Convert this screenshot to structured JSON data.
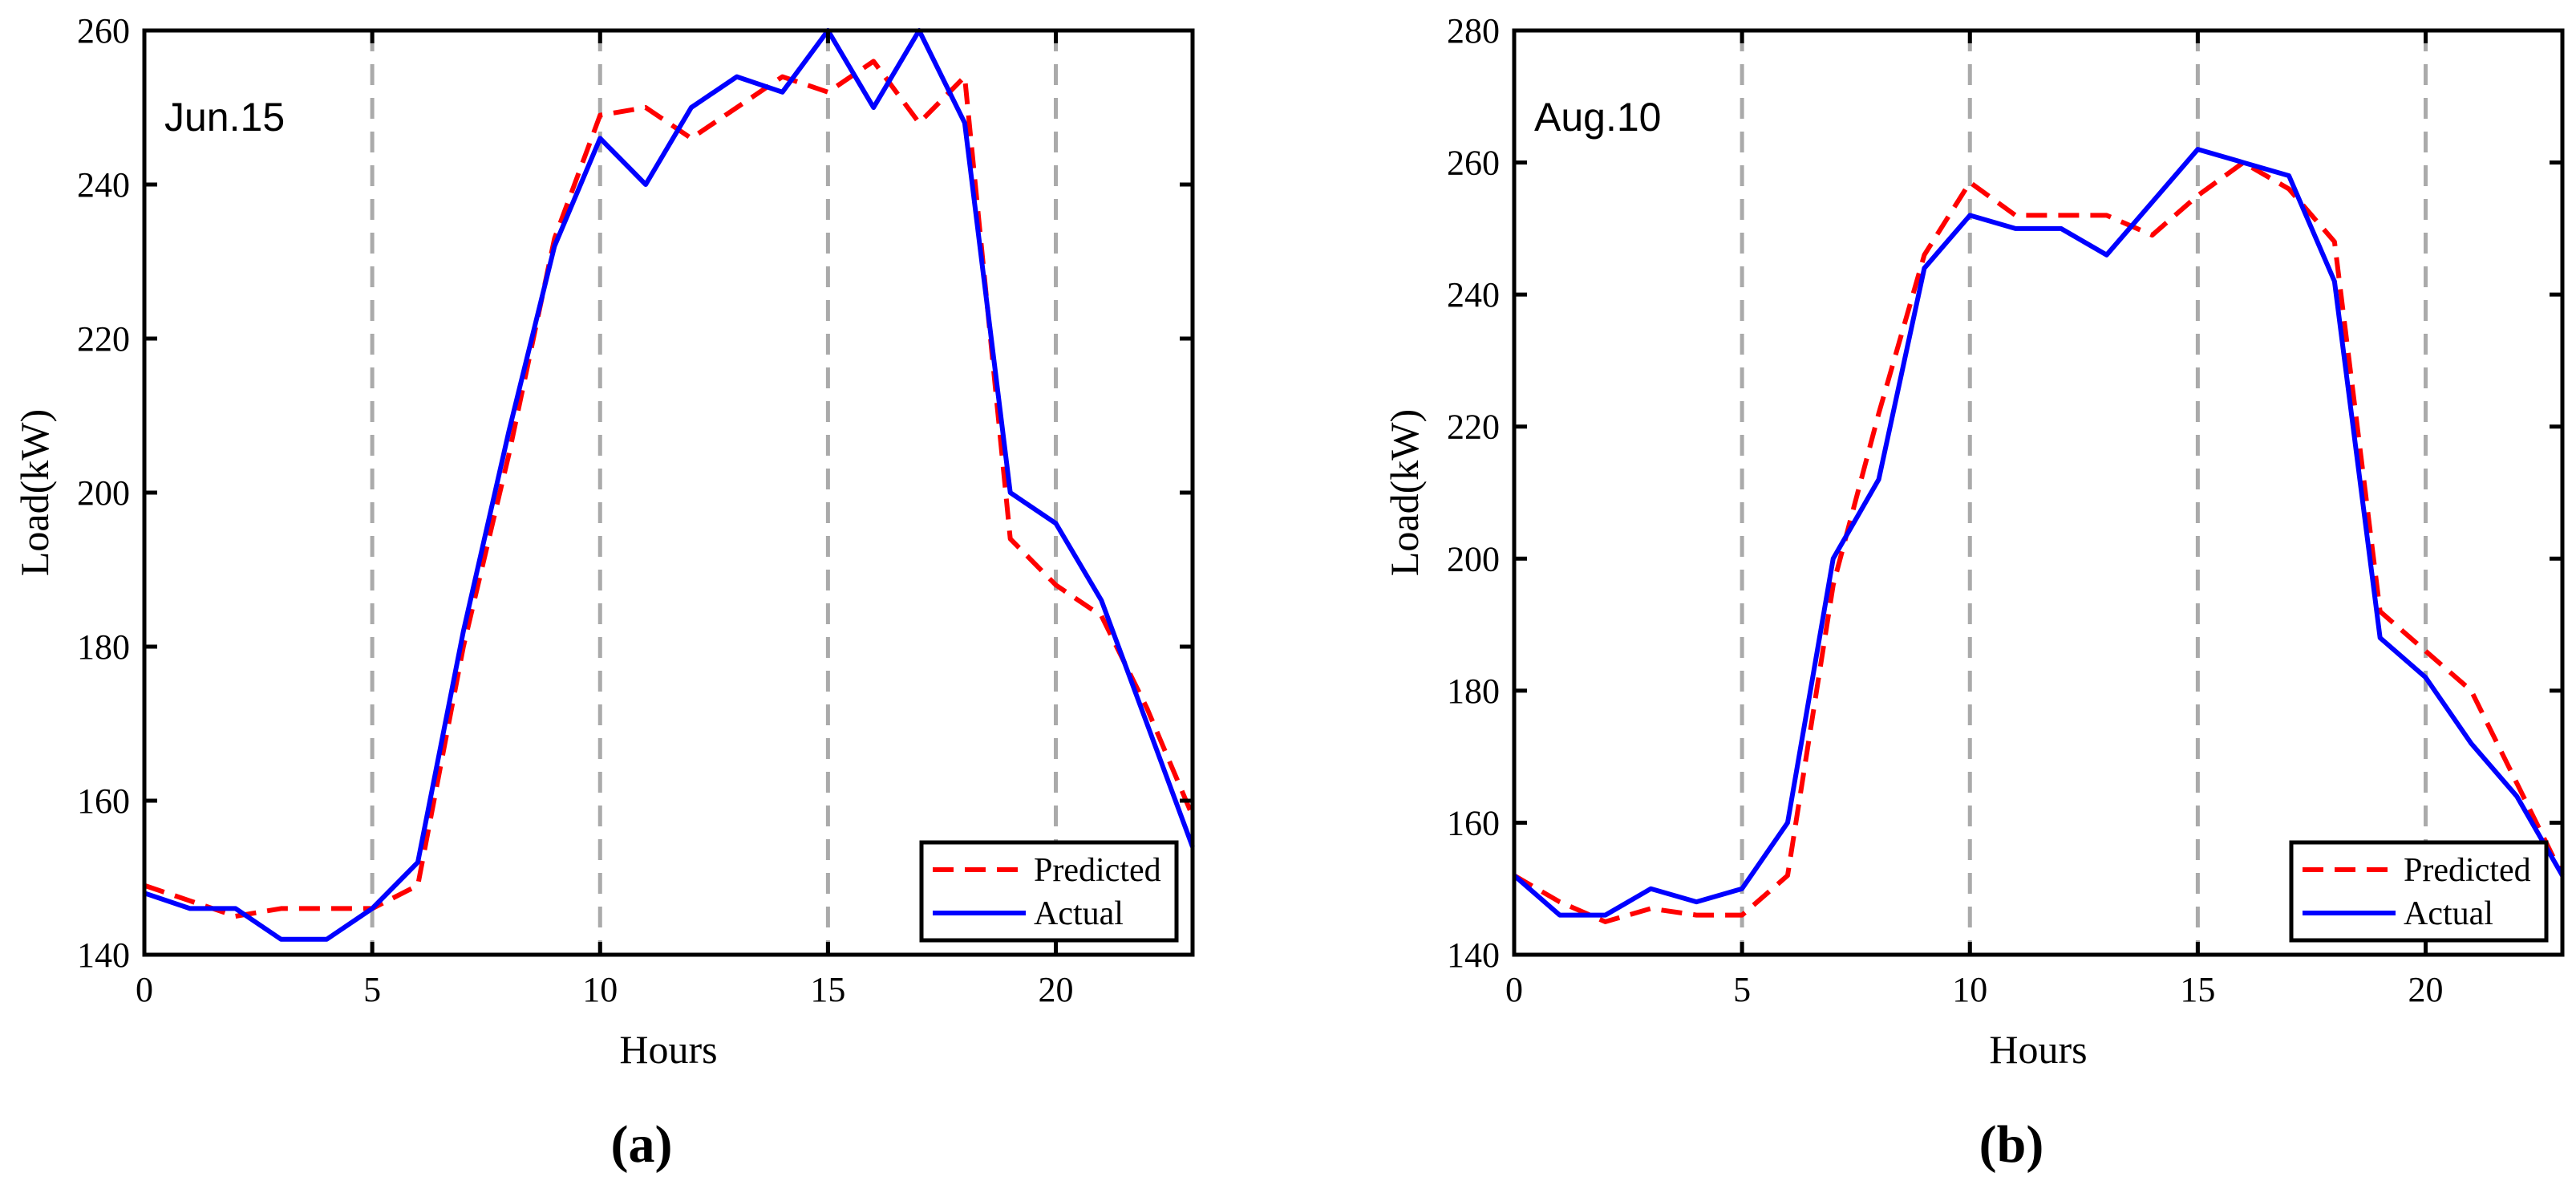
{
  "figure": {
    "name": "load-forecast-comparison",
    "colors": {
      "predicted": "#ff0000",
      "actual": "#0000ff",
      "grid": "#aaaaaa",
      "axis": "#000000"
    }
  },
  "chart_data": [
    {
      "type": "line",
      "panel_label": "(a)",
      "title": "Jun.15",
      "xlabel": "Hours",
      "ylabel": "Load(kW)",
      "xlim": [
        0,
        23
      ],
      "ylim": [
        140,
        260
      ],
      "xticks": [
        0,
        5,
        10,
        15,
        20
      ],
      "yticks": [
        140,
        160,
        180,
        200,
        220,
        240,
        260
      ],
      "grid": "vertical dashed at x ticks",
      "legend_position": "bottom-right",
      "x": [
        0,
        1,
        2,
        3,
        4,
        5,
        6,
        7,
        8,
        9,
        10,
        11,
        12,
        13,
        14,
        15,
        16,
        17,
        18,
        19,
        20,
        21,
        22,
        23
      ],
      "series": [
        {
          "name": "Predicted",
          "style": "dashed",
          "color": "#ff0000",
          "values": [
            149,
            147,
            145,
            146,
            146,
            146,
            149,
            180,
            205,
            233,
            249,
            250,
            246,
            250,
            254,
            252,
            256,
            248,
            254,
            194,
            188,
            184,
            172,
            158
          ]
        },
        {
          "name": "Actual",
          "style": "solid",
          "color": "#0000ff",
          "values": [
            148,
            146,
            146,
            142,
            142,
            146,
            152,
            182,
            208,
            232,
            246,
            240,
            250,
            254,
            252,
            260,
            250,
            260,
            248,
            200,
            196,
            186,
            170,
            154
          ]
        }
      ]
    },
    {
      "type": "line",
      "panel_label": "(b)",
      "title": "Aug.10",
      "xlabel": "Hours",
      "ylabel": "Load(kW)",
      "xlim": [
        0,
        23
      ],
      "ylim": [
        140,
        280
      ],
      "xticks": [
        0,
        5,
        10,
        15,
        20
      ],
      "yticks": [
        140,
        160,
        180,
        200,
        220,
        240,
        260,
        280
      ],
      "grid": "vertical dashed at x ticks",
      "legend_position": "bottom-right",
      "x": [
        0,
        1,
        2,
        3,
        4,
        5,
        6,
        7,
        8,
        9,
        10,
        11,
        12,
        13,
        14,
        15,
        16,
        17,
        18,
        19,
        20,
        21,
        22,
        23
      ],
      "series": [
        {
          "name": "Predicted",
          "style": "dashed",
          "color": "#ff0000",
          "values": [
            152,
            148,
            145,
            147,
            146,
            146,
            152,
            196,
            222,
            246,
            257,
            252,
            252,
            252,
            249,
            255,
            260,
            256,
            248,
            192,
            186,
            180,
            166,
            152
          ]
        },
        {
          "name": "Actual",
          "style": "solid",
          "color": "#0000ff",
          "values": [
            152,
            146,
            146,
            150,
            148,
            150,
            160,
            200,
            212,
            244,
            252,
            250,
            250,
            246,
            254,
            262,
            260,
            258,
            242,
            188,
            182,
            172,
            164,
            152
          ]
        }
      ]
    }
  ]
}
